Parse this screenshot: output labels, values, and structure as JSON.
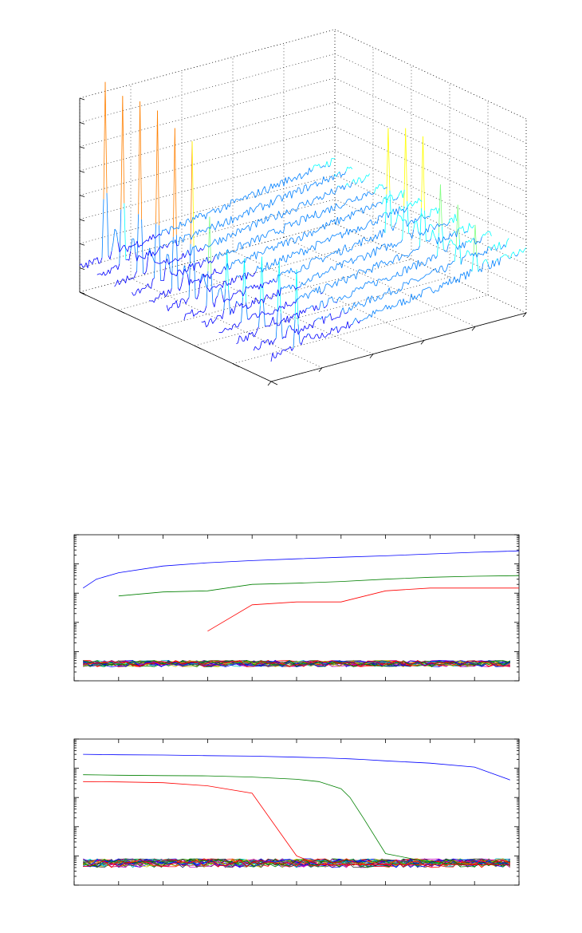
{
  "colors": {
    "axis": "#000000",
    "series": [
      "#0000ff",
      "#008000",
      "#ff0000",
      "#00bfbf",
      "#bf00bf",
      "#bfbf00",
      "#404040"
    ],
    "colormap": [
      "#00008f",
      "#0000ff",
      "#0080ff",
      "#00ffff",
      "#80ff80",
      "#ffff00",
      "#ff8000",
      "#ff0000",
      "#800000"
    ]
  },
  "chart_data": [
    {
      "type": "waterfall-3d",
      "title": "",
      "xlabel": "",
      "ylabel": "",
      "zlabel": "",
      "grid": true,
      "colormap": "jet",
      "tick_labels_shown": false,
      "slice_count": 12,
      "z_range": [
        0,
        8
      ],
      "baseline": 1.0,
      "noise": 0.12,
      "peaks": [
        {
          "slice": 0,
          "pos": 0.1,
          "height": 7.4
        },
        {
          "slice": 1,
          "pos": 0.1,
          "height": 7.1
        },
        {
          "slice": 2,
          "pos": 0.1,
          "height": 7.0
        },
        {
          "slice": 3,
          "pos": 0.1,
          "height": 6.9
        },
        {
          "slice": 4,
          "pos": 0.1,
          "height": 6.6
        },
        {
          "slice": 5,
          "pos": 0.1,
          "height": 6.4
        },
        {
          "slice": 6,
          "pos": 0.1,
          "height": 3.8
        },
        {
          "slice": 7,
          "pos": 0.1,
          "height": 2.6
        },
        {
          "slice": 8,
          "pos": 0.1,
          "height": 2.6
        },
        {
          "slice": 9,
          "pos": 0.1,
          "height": 3.0
        },
        {
          "slice": 10,
          "pos": 0.1,
          "height": 3.0
        },
        {
          "slice": 11,
          "pos": 0.1,
          "height": 3.1
        },
        {
          "slice": 6,
          "pos": 0.8,
          "height": 4.4
        },
        {
          "slice": 7,
          "pos": 0.8,
          "height": 4.6
        },
        {
          "slice": 8,
          "pos": 0.8,
          "height": 4.4
        },
        {
          "slice": 9,
          "pos": 0.8,
          "height": 3.0
        },
        {
          "slice": 10,
          "pos": 0.8,
          "height": 2.5
        },
        {
          "slice": 11,
          "pos": 0.8,
          "height": 2.0
        }
      ]
    },
    {
      "type": "line",
      "title": "",
      "xlabel": "",
      "ylabel": "",
      "yscale": "log",
      "xlim": [
        0,
        100
      ],
      "ylim": [
        0.01,
        1000
      ],
      "x": [
        2,
        5,
        10,
        20,
        30,
        40,
        50,
        60,
        70,
        80,
        90,
        100
      ],
      "series": [
        {
          "values": [
            15,
            30,
            50,
            85,
            110,
            130,
            150,
            170,
            190,
            220,
            250,
            280
          ]
        },
        {
          "values": [
            null,
            null,
            8,
            11,
            12,
            20,
            22,
            25,
            30,
            35,
            38,
            40
          ]
        },
        {
          "values": [
            null,
            null,
            null,
            null,
            0.5,
            4,
            5,
            5,
            12,
            15,
            15,
            15
          ]
        }
      ],
      "noise_band": {
        "count": 24,
        "low": 0.03,
        "high": 0.05
      }
    },
    {
      "type": "line",
      "title": "",
      "xlabel": "",
      "ylabel": "",
      "yscale": "log",
      "xlim": [
        0,
        100
      ],
      "ylim": [
        0.01,
        1000
      ],
      "x": [
        2,
        10,
        20,
        30,
        40,
        50,
        55,
        60,
        62,
        65,
        70,
        80,
        90,
        98
      ],
      "series": [
        {
          "values": [
            300,
            290,
            285,
            270,
            260,
            240,
            230,
            215,
            210,
            200,
            180,
            150,
            110,
            40
          ]
        },
        {
          "values": [
            60,
            58,
            56,
            55,
            50,
            42,
            35,
            20,
            10,
            2,
            0.12,
            0.06,
            0.05,
            0.05
          ]
        },
        {
          "values": [
            35,
            34,
            32,
            25,
            14,
            0.1,
            0.05,
            0.05,
            0.05,
            0.05,
            0.05,
            0.05,
            0.05,
            0.05
          ]
        }
      ],
      "noise_band": {
        "count": 24,
        "low": 0.04,
        "high": 0.08
      }
    }
  ]
}
